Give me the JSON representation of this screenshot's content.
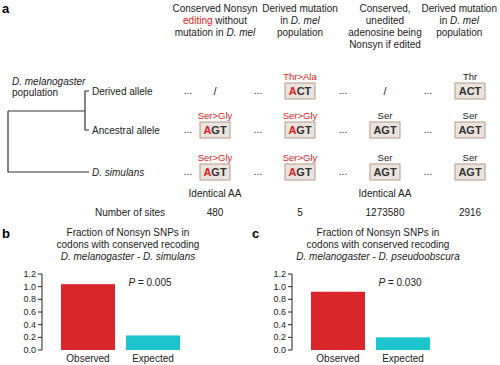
{
  "diagram": {
    "panel": "a",
    "tree_label": [
      [
        {
          "text": "D. melanogaster",
          "italic": true
        }
      ],
      [
        {
          "text": "population"
        }
      ]
    ],
    "rows": [
      [
        {
          "text": "Derived allele"
        }
      ],
      [
        {
          "text": "Ancestral allele"
        }
      ],
      [
        {
          "text": "D. simulans",
          "italic": true
        }
      ]
    ],
    "ellipsis": "...",
    "columns": [
      {
        "header": [
          [
            {
              "text": "Conserved Nonsyn"
            }
          ],
          [
            {
              "text": "editing",
              "color": "#e02020"
            },
            {
              "text": " without"
            }
          ],
          [
            {
              "text": "mutation in "
            },
            {
              "text": "D. mel",
              "italic": true
            }
          ]
        ],
        "cells": [
          {
            "text": "/"
          },
          {
            "change": "Ser>Gly",
            "change_color": "#e02020",
            "codon": "AGT",
            "edited": true
          },
          {
            "change": "Ser>Gly",
            "change_color": "#e02020",
            "codon": "AGT",
            "edited": true
          }
        ],
        "note": "Identical AA",
        "sites": 480
      },
      {
        "header": [
          [
            {
              "text": "Derived mutation"
            }
          ],
          [
            {
              "text": "in "
            },
            {
              "text": "D. mel",
              "italic": true
            }
          ],
          [
            {
              "text": "population"
            }
          ]
        ],
        "cells": [
          {
            "change": "Thr>Ala",
            "change_color": "#e02020",
            "codon": "ACT",
            "edited": true
          },
          {
            "change": "Ser>Gly",
            "change_color": "#e02020",
            "codon": "AGT",
            "edited": true
          },
          {
            "change": "Ser>Gly",
            "change_color": "#e02020",
            "codon": "AGT",
            "edited": true
          }
        ],
        "sites": 5
      },
      {
        "header": [
          [
            {
              "text": "Conserved,"
            }
          ],
          [
            {
              "text": "unedited"
            }
          ],
          [
            {
              "text": "adenosine being"
            }
          ],
          [
            {
              "text": "Nonsyn if edited"
            }
          ]
        ],
        "cells": [
          {
            "text": "/"
          },
          {
            "change": "Ser",
            "codon": "AGT",
            "edited": false
          },
          {
            "change": "Ser",
            "codon": "AGT",
            "edited": false
          }
        ],
        "note": "Identical AA",
        "sites": 1273580
      },
      {
        "header": [
          [
            {
              "text": "Derived mutation"
            }
          ],
          [
            {
              "text": "in "
            },
            {
              "text": "D. mel",
              "italic": true
            }
          ],
          [
            {
              "text": "population"
            }
          ]
        ],
        "cells": [
          {
            "change": "Thr",
            "codon": "ACT",
            "edited": false
          },
          {
            "change": "Ser",
            "codon": "AGT",
            "edited": false
          },
          {
            "change": "Ser",
            "codon": "AGT",
            "edited": false
          }
        ],
        "sites": 2916
      }
    ],
    "sites_label": "Number of sites"
  },
  "chart_data": [
    {
      "type": "bar",
      "panel": "b",
      "title": [
        "Fraction of Nonsyn SNPs in",
        "codons with conserved recoding"
      ],
      "subtitle": [
        {
          "text": "D. melanogaster",
          "italic": true
        },
        {
          "text": " - "
        },
        {
          "text": "D. simulans",
          "italic": true
        }
      ],
      "categories": [
        "Observed",
        "Expected"
      ],
      "values": [
        1.04,
        0.23
      ],
      "colors": [
        "#d9262b",
        "#1ec4cc"
      ],
      "ylim": [
        0,
        1.2
      ],
      "yticks": [
        {
          "value": 0,
          "label": "0.0"
        },
        0.2,
        0.4,
        0.6,
        0.8,
        {
          "value": 1,
          "label": "1.0"
        },
        1.2
      ],
      "annotation": [
        {
          "text": "P",
          "italic": true
        },
        {
          "text": " = 0.005"
        }
      ]
    },
    {
      "type": "bar",
      "panel": "c",
      "title": [
        "Fraction of Nonsyn SNPs in",
        "codons with conserved recoding"
      ],
      "subtitle": [
        {
          "text": "D. melanogaster",
          "italic": true
        },
        {
          "text": " - "
        },
        {
          "text": "D. pseudoobscura",
          "italic": true
        }
      ],
      "categories": [
        "Observed",
        "Expected"
      ],
      "values": [
        0.92,
        0.2
      ],
      "colors": [
        "#d9262b",
        "#1ec4cc"
      ],
      "ylim": [
        0,
        1.2
      ],
      "yticks": [
        {
          "value": 0,
          "label": "0.0"
        },
        0.2,
        0.4,
        0.6,
        0.8,
        {
          "value": 1,
          "label": "1.0"
        },
        1.2
      ],
      "annotation": [
        {
          "text": "P",
          "italic": true
        },
        {
          "text": " = 0.030"
        }
      ]
    }
  ]
}
